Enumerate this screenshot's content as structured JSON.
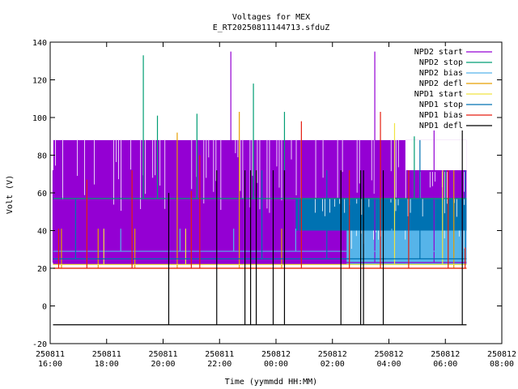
{
  "chart_data": {
    "type": "line",
    "title": "Voltages for MEX",
    "subtitle": "E_RT20250811144713.sfduZ",
    "xlabel": "Time (yymmdd HH:MM)",
    "ylabel": "Volt (V)",
    "xlim": [
      "2025-08-11 16:00",
      "2025-08-12 08:00"
    ],
    "ylim": [
      -20,
      140
    ],
    "y_ticks": [
      -20,
      0,
      20,
      40,
      60,
      80,
      100,
      120,
      140
    ],
    "x_ticks": [
      {
        "t": 0,
        "date": "250811",
        "time": "16:00"
      },
      {
        "t": 2,
        "date": "250811",
        "time": "18:00"
      },
      {
        "t": 4,
        "date": "250811",
        "time": "20:00"
      },
      {
        "t": 6,
        "date": "250811",
        "time": "22:00"
      },
      {
        "t": 8,
        "date": "250812",
        "time": "00:00"
      },
      {
        "t": 10,
        "date": "250812",
        "time": "02:00"
      },
      {
        "t": 12,
        "date": "250812",
        "time": "04:00"
      },
      {
        "t": 14,
        "date": "250812",
        "time": "06:00"
      },
      {
        "t": 16,
        "date": "250812",
        "time": "08:00"
      }
    ],
    "grid": false,
    "legend_position": "top-right",
    "data_span_hours": [
      0.1,
      14.75
    ],
    "series": [
      {
        "name": "NPD2 start",
        "color": "#9400d3",
        "bands": [
          {
            "t0": 0.1,
            "t1": 14.75,
            "lo": 22,
            "hi": 88,
            "gaps_from": 12.6,
            "gap_hi": 72
          }
        ],
        "spikes": [
          [
            0.1,
            72
          ],
          [
            1.3,
            72
          ],
          [
            6.4,
            135
          ],
          [
            11.5,
            135
          ],
          [
            8.8,
            87
          ],
          [
            13.6,
            102
          ],
          [
            14.6,
            72
          ]
        ],
        "baseline": 23
      },
      {
        "name": "NPD2 stop",
        "color": "#009e73",
        "baseline": 57,
        "spikes": [
          [
            3.3,
            133
          ],
          [
            3.8,
            101
          ],
          [
            5.2,
            102
          ],
          [
            7.2,
            118
          ],
          [
            8.3,
            103
          ],
          [
            12.9,
            90
          ],
          [
            14.0,
            72
          ]
        ]
      },
      {
        "name": "NPD2 bias",
        "color": "#56b4e9",
        "bands": [
          {
            "t0": 10.5,
            "t1": 14.75,
            "lo": 22,
            "hi": 41
          }
        ],
        "baseline": 29,
        "spikes": [
          [
            2.5,
            41
          ],
          [
            4.6,
            41
          ],
          [
            6.5,
            41
          ],
          [
            8.7,
            41
          ],
          [
            12.1,
            41
          ]
        ]
      },
      {
        "name": "NPD2 defl",
        "color": "#e69f00",
        "baseline": 20,
        "spikes": [
          [
            0.4,
            41
          ],
          [
            1.7,
            41
          ],
          [
            3.0,
            41
          ],
          [
            4.5,
            92
          ],
          [
            6.7,
            103
          ],
          [
            8.2,
            41
          ],
          [
            14.3,
            72
          ]
        ]
      },
      {
        "name": "NPD1 start",
        "color": "#f0e442",
        "baseline": 22,
        "spikes": [
          [
            1.9,
            41
          ],
          [
            4.8,
            41
          ],
          [
            12.2,
            97
          ],
          [
            13.9,
            72
          ]
        ]
      },
      {
        "name": "NPD1 stop",
        "color": "#0072b2",
        "bands": [
          {
            "t0": 8.7,
            "t1": 14.75,
            "lo": 40,
            "hi": 57
          }
        ],
        "baseline": 25,
        "spikes": [
          [
            0.9,
            57
          ],
          [
            7.5,
            72
          ],
          [
            9.8,
            72
          ],
          [
            13.1,
            88
          ],
          [
            14.7,
            72
          ]
        ]
      },
      {
        "name": "NPD1 bias",
        "color": "#e51e10",
        "baseline": 20,
        "spikes": [
          [
            0.3,
            41
          ],
          [
            1.3,
            67
          ],
          [
            2.9,
            72
          ],
          [
            5.0,
            61
          ],
          [
            5.3,
            80
          ],
          [
            8.9,
            98
          ],
          [
            10.6,
            72
          ],
          [
            11.7,
            103
          ],
          [
            12.7,
            72
          ],
          [
            14.1,
            72
          ],
          [
            14.7,
            31
          ]
        ]
      },
      {
        "name": "NPD1 defl",
        "color": "#000000",
        "baseline": -10,
        "spikes": [
          [
            4.2,
            60
          ],
          [
            5.9,
            72
          ],
          [
            6.9,
            72
          ],
          [
            7.1,
            72
          ],
          [
            7.3,
            72
          ],
          [
            7.9,
            72
          ],
          [
            8.3,
            72
          ],
          [
            10.3,
            72
          ],
          [
            11.0,
            72
          ],
          [
            11.1,
            72
          ],
          [
            11.8,
            72
          ],
          [
            14.6,
            100
          ]
        ]
      }
    ]
  }
}
